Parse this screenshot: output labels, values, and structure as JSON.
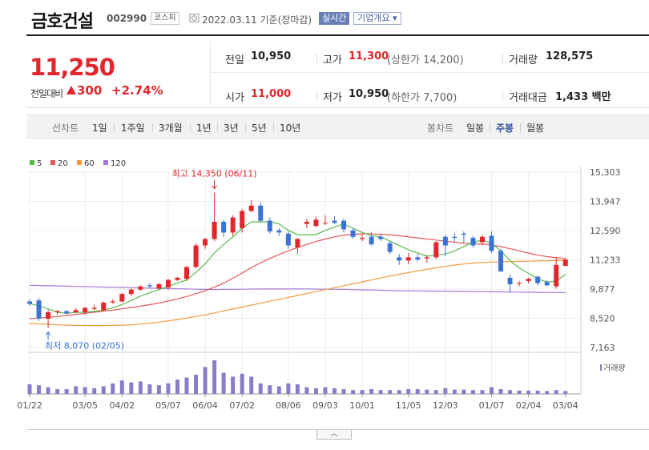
{
  "header": {
    "company_name": "금호건설",
    "code": "002990",
    "market": "코스피",
    "date_text": "2022.03.11 기준(장마감)",
    "realtime_label": "실시간",
    "overview_label": "기업개요 ▾"
  },
  "quote": {
    "price": "11,250",
    "change_label": "전일대비",
    "change_value": "300",
    "change_pct": "+2.74%",
    "prev_close_label": "전일",
    "prev_close": "10,950",
    "high_label": "고가",
    "high": "11,300",
    "upper_limit": "(상한가 14,200)",
    "volume_label": "거래량",
    "volume": "128,575",
    "open_label": "시가",
    "open": "11,000",
    "low_label": "저가",
    "low": "10,950",
    "lower_limit": "(하한가 7,700)",
    "amount_label": "거래대금",
    "amount": "1,433 백만"
  },
  "period_tabs": {
    "line_label": "선차트",
    "line_items": [
      "1일",
      "1주일",
      "3개월",
      "1년",
      "3년",
      "5년",
      "10년"
    ],
    "candle_label": "봉차트",
    "candle_items": [
      "일봉",
      "주봉",
      "월봉"
    ],
    "active": "주봉"
  },
  "colors": {
    "up": "#e2262b",
    "down": "#3a72d6",
    "ma5": "#59b94e",
    "ma20": "#e8575a",
    "ma60": "#f39a3d",
    "ma120": "#a57ad6",
    "volume": "#8c7bc9"
  },
  "chart_data": {
    "type": "candlestick",
    "interval": "weekly",
    "legend": [
      "5",
      "20",
      "60",
      "120"
    ],
    "y_ticks": [
      "15,303",
      "13,947",
      "12,590",
      "11,233",
      "9,877",
      "8,520",
      "7,163"
    ],
    "ylim": [
      7163,
      15303
    ],
    "x_tick_labels": [
      "01/22",
      "03/05",
      "04/02",
      "05/07",
      "06/04",
      "07/02",
      "08/06",
      "09/03",
      "10/01",
      "11/05",
      "12/03",
      "01/07",
      "02/04",
      "03/04"
    ],
    "x_tick_index": [
      0,
      6,
      10,
      15,
      19,
      23,
      28,
      32,
      36,
      41,
      45,
      50,
      54,
      58
    ],
    "annotations": {
      "max_text": "최고 14,350 (06/11)",
      "max_index": 20,
      "max_value": 14350,
      "min_text": "최저 8,070 (02/05)",
      "min_index": 2,
      "min_value": 8070
    },
    "volume_label": "거래량",
    "candles": [
      {
        "o": 9300,
        "h": 9400,
        "l": 9100,
        "c": 9200
      },
      {
        "o": 9350,
        "h": 9450,
        "l": 8400,
        "c": 8500
      },
      {
        "o": 8500,
        "h": 8900,
        "l": 8070,
        "c": 8800
      },
      {
        "o": 8800,
        "h": 8900,
        "l": 8700,
        "c": 8850
      },
      {
        "o": 8850,
        "h": 8900,
        "l": 8700,
        "c": 8750
      },
      {
        "o": 8800,
        "h": 9000,
        "l": 8750,
        "c": 8900
      },
      {
        "o": 8800,
        "h": 9050,
        "l": 8700,
        "c": 9000
      },
      {
        "o": 8950,
        "h": 9150,
        "l": 8900,
        "c": 9000
      },
      {
        "o": 8900,
        "h": 9300,
        "l": 8850,
        "c": 9250
      },
      {
        "o": 9250,
        "h": 9400,
        "l": 9200,
        "c": 9300
      },
      {
        "o": 9300,
        "h": 9700,
        "l": 9250,
        "c": 9650
      },
      {
        "o": 9650,
        "h": 9900,
        "l": 9550,
        "c": 9850
      },
      {
        "o": 9850,
        "h": 10050,
        "l": 9800,
        "c": 10000
      },
      {
        "o": 10050,
        "h": 10150,
        "l": 9900,
        "c": 10000
      },
      {
        "o": 9900,
        "h": 10150,
        "l": 9850,
        "c": 10100
      },
      {
        "o": 9950,
        "h": 10350,
        "l": 9850,
        "c": 10300
      },
      {
        "o": 10300,
        "h": 10450,
        "l": 10250,
        "c": 10400
      },
      {
        "o": 10350,
        "h": 10950,
        "l": 10250,
        "c": 10900
      },
      {
        "o": 10900,
        "h": 12000,
        "l": 10850,
        "c": 11900
      },
      {
        "o": 11900,
        "h": 12250,
        "l": 11750,
        "c": 12200
      },
      {
        "o": 12200,
        "h": 14350,
        "l": 12100,
        "c": 13000
      },
      {
        "o": 13000,
        "h": 13100,
        "l": 12300,
        "c": 12500
      },
      {
        "o": 12500,
        "h": 13300,
        "l": 12350,
        "c": 13200
      },
      {
        "o": 12700,
        "h": 13600,
        "l": 12500,
        "c": 13500
      },
      {
        "o": 13500,
        "h": 14000,
        "l": 13450,
        "c": 13750
      },
      {
        "o": 13750,
        "h": 13900,
        "l": 12950,
        "c": 13050
      },
      {
        "o": 13050,
        "h": 13200,
        "l": 12450,
        "c": 12550
      },
      {
        "o": 12600,
        "h": 12700,
        "l": 12350,
        "c": 12500
      },
      {
        "o": 12450,
        "h": 12550,
        "l": 11750,
        "c": 11900
      },
      {
        "o": 11800,
        "h": 12250,
        "l": 11500,
        "c": 12200
      },
      {
        "o": 12900,
        "h": 13150,
        "l": 12700,
        "c": 13000
      },
      {
        "o": 12800,
        "h": 13250,
        "l": 12750,
        "c": 13100
      },
      {
        "o": 12950,
        "h": 13300,
        "l": 12850,
        "c": 12950
      },
      {
        "o": 13050,
        "h": 13250,
        "l": 12900,
        "c": 12950
      },
      {
        "o": 13050,
        "h": 13150,
        "l": 12500,
        "c": 12650
      },
      {
        "o": 12600,
        "h": 12700,
        "l": 12200,
        "c": 12300
      },
      {
        "o": 12200,
        "h": 12400,
        "l": 12100,
        "c": 12250
      },
      {
        "o": 12300,
        "h": 12500,
        "l": 11900,
        "c": 11950
      },
      {
        "o": 12300,
        "h": 12450,
        "l": 12100,
        "c": 12200
      },
      {
        "o": 12000,
        "h": 12100,
        "l": 11500,
        "c": 11600
      },
      {
        "o": 11350,
        "h": 11500,
        "l": 11000,
        "c": 11200
      },
      {
        "o": 11200,
        "h": 11550,
        "l": 11050,
        "c": 11350
      },
      {
        "o": 11350,
        "h": 11500,
        "l": 11150,
        "c": 11250
      },
      {
        "o": 11300,
        "h": 11450,
        "l": 11100,
        "c": 11350
      },
      {
        "o": 11350,
        "h": 12100,
        "l": 11250,
        "c": 12050
      },
      {
        "o": 12300,
        "h": 12400,
        "l": 11400,
        "c": 11900
      },
      {
        "o": 12300,
        "h": 12500,
        "l": 12050,
        "c": 12250
      },
      {
        "o": 12450,
        "h": 12550,
        "l": 12000,
        "c": 12400
      },
      {
        "o": 12250,
        "h": 12350,
        "l": 11800,
        "c": 11900
      },
      {
        "o": 12050,
        "h": 12400,
        "l": 11900,
        "c": 12300
      },
      {
        "o": 12350,
        "h": 12550,
        "l": 11550,
        "c": 11650
      },
      {
        "o": 11650,
        "h": 11750,
        "l": 10650,
        "c": 10700
      },
      {
        "o": 10400,
        "h": 10550,
        "l": 9700,
        "c": 10100
      },
      {
        "o": 10150,
        "h": 10250,
        "l": 10000,
        "c": 10150
      },
      {
        "o": 10250,
        "h": 10400,
        "l": 10150,
        "c": 10350
      },
      {
        "o": 10450,
        "h": 10500,
        "l": 10050,
        "c": 10150
      },
      {
        "o": 10200,
        "h": 10300,
        "l": 10000,
        "c": 10050
      },
      {
        "o": 10000,
        "h": 11350,
        "l": 9900,
        "c": 11000
      },
      {
        "o": 10950,
        "h": 11300,
        "l": 10950,
        "c": 11250
      }
    ],
    "volumes": [
      20,
      18,
      14,
      10,
      10,
      16,
      14,
      12,
      16,
      22,
      28,
      24,
      26,
      20,
      18,
      22,
      30,
      34,
      40,
      56,
      70,
      44,
      36,
      42,
      36,
      22,
      18,
      16,
      22,
      20,
      14,
      12,
      14,
      12,
      10,
      8,
      8,
      10,
      8,
      8,
      8,
      10,
      10,
      9,
      8,
      12,
      9,
      9,
      8,
      8,
      14,
      10,
      8,
      7,
      7,
      7,
      6,
      8,
      6
    ],
    "ma5": [
      9200,
      9100,
      8950,
      8800,
      8750,
      8800,
      8800,
      8850,
      8900,
      9000,
      9150,
      9350,
      9550,
      9700,
      9850,
      10000,
      10150,
      10300,
      10650,
      11050,
      11550,
      11950,
      12300,
      12700,
      13000,
      13000,
      13000,
      12900,
      12600,
      12400,
      12400,
      12400,
      12600,
      12750,
      12900,
      12700,
      12500,
      12350,
      12300,
      12100,
      11900,
      11700,
      11550,
      11400,
      11450,
      11500,
      11650,
      11850,
      12050,
      12150,
      12000,
      11650,
      11200,
      10850,
      10600,
      10350,
      10200,
      10250,
      10550
    ],
    "ma20": [
      8500,
      8530,
      8560,
      8600,
      8650,
      8700,
      8750,
      8800,
      8850,
      8900,
      8960,
      9020,
      9080,
      9150,
      9230,
      9320,
      9420,
      9530,
      9660,
      9800,
      9960,
      10150,
      10380,
      10620,
      10870,
      11100,
      11300,
      11480,
      11650,
      11800,
      11950,
      12080,
      12200,
      12300,
      12380,
      12420,
      12440,
      12440,
      12420,
      12400,
      12350,
      12300,
      12250,
      12200,
      12150,
      12100,
      12050,
      12000,
      11980,
      11960,
      11920,
      11850,
      11750,
      11650,
      11550,
      11450,
      11380,
      11330,
      11300
    ],
    "ma60": [
      8280,
      8260,
      8240,
      8220,
      8200,
      8190,
      8180,
      8180,
      8180,
      8190,
      8200,
      8220,
      8250,
      8290,
      8340,
      8400,
      8460,
      8530,
      8600,
      8680,
      8770,
      8860,
      8950,
      9040,
      9130,
      9220,
      9310,
      9400,
      9490,
      9580,
      9670,
      9760,
      9850,
      9940,
      10030,
      10120,
      10210,
      10300,
      10390,
      10480,
      10560,
      10640,
      10720,
      10790,
      10860,
      10930,
      10990,
      11040,
      11080,
      11110,
      11130,
      11140,
      11150,
      11160,
      11170,
      11180,
      11190,
      11200,
      11210
    ],
    "ma120": [
      10050,
      10040,
      10030,
      10020,
      10010,
      10000,
      9990,
      9980,
      9970,
      9960,
      9950,
      9940,
      9930,
      9920,
      9910,
      9900,
      9890,
      9880,
      9870,
      9860,
      9855,
      9860,
      9865,
      9870,
      9875,
      9880,
      9880,
      9880,
      9880,
      9880,
      9880,
      9875,
      9870,
      9865,
      9860,
      9850,
      9840,
      9830,
      9820,
      9810,
      9800,
      9795,
      9790,
      9785,
      9780,
      9775,
      9770,
      9765,
      9760,
      9755,
      9750,
      9745,
      9740,
      9735,
      9730,
      9725,
      9720,
      9715,
      9710
    ]
  }
}
